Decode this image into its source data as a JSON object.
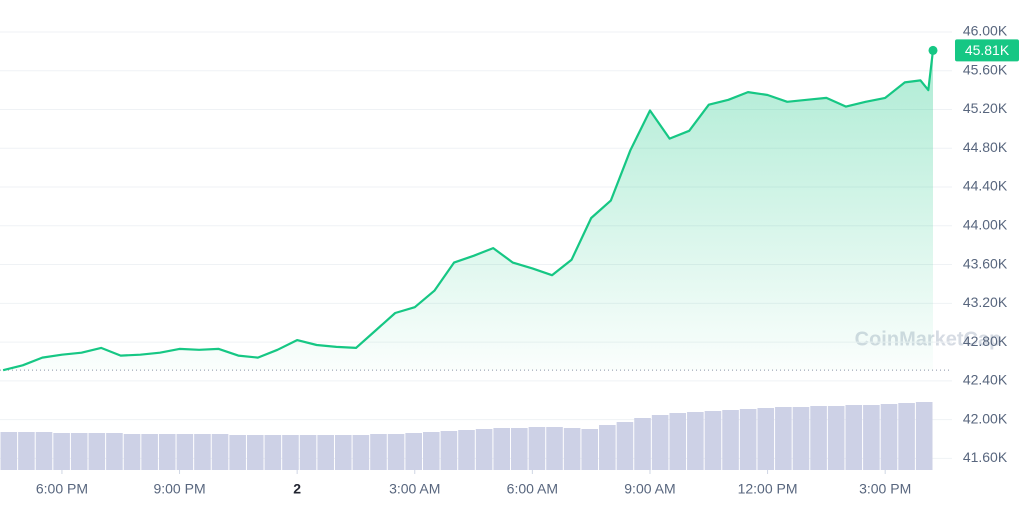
{
  "chart_data": {
    "type": "line",
    "watermark": "CoinMarketCap",
    "color": "#16c784",
    "x": [
      16.5,
      17,
      17.5,
      18,
      18.5,
      19,
      19.5,
      20,
      20.5,
      21,
      21.5,
      22,
      22.5,
      23,
      23.5,
      24,
      24.5,
      25,
      25.5,
      26,
      26.5,
      27,
      27.5,
      28,
      28.5,
      29,
      29.5,
      30,
      30.5,
      31,
      31.5,
      32,
      32.5,
      33,
      33.5,
      34,
      34.5,
      35,
      35.5,
      36,
      36.5,
      37,
      37.5,
      38,
      38.5,
      39,
      39.5,
      39.9,
      40.1,
      40.22
    ],
    "values": [
      42.51,
      42.56,
      42.64,
      42.67,
      42.69,
      42.74,
      42.66,
      42.67,
      42.69,
      42.73,
      42.72,
      42.73,
      42.66,
      42.64,
      42.72,
      42.82,
      42.77,
      42.75,
      42.74,
      42.92,
      43.1,
      43.16,
      43.33,
      43.62,
      43.69,
      43.77,
      43.62,
      43.56,
      43.49,
      43.65,
      44.08,
      44.26,
      44.78,
      45.19,
      44.9,
      44.98,
      45.25,
      45.3,
      45.38,
      45.35,
      45.28,
      45.3,
      45.32,
      45.23,
      45.28,
      45.32,
      45.48,
      45.5,
      45.4,
      45.81
    ],
    "value_labels": [
      null,
      null,
      null,
      null,
      null,
      null,
      null,
      null,
      null,
      null,
      null,
      null,
      null,
      null,
      null,
      null,
      null,
      null,
      null,
      null,
      null,
      null,
      null,
      null,
      null,
      null,
      null,
      null,
      null,
      null,
      null,
      null,
      null,
      null,
      null,
      null,
      null,
      null,
      null,
      null,
      null,
      null,
      null,
      null,
      null,
      null,
      null,
      null,
      null,
      "45.81K"
    ],
    "reference_line": 42.51,
    "xlim": [
      16.42,
      40.22
    ],
    "xticks": [
      {
        "value": 18,
        "label": "6:00 PM"
      },
      {
        "value": 21,
        "label": "9:00 PM"
      },
      {
        "value": 24,
        "label": "2"
      },
      {
        "value": 27,
        "label": "3:00 AM"
      },
      {
        "value": 30,
        "label": "6:00 AM"
      },
      {
        "value": 33,
        "label": "9:00 AM"
      },
      {
        "value": 36,
        "label": "12:00 PM"
      },
      {
        "value": 39,
        "label": "3:00 PM"
      }
    ],
    "ylim": [
      41.48,
      46.33
    ],
    "yticks": [
      {
        "value": 41.6,
        "label": "41.60K"
      },
      {
        "value": 42,
        "label": "42.00K"
      },
      {
        "value": 42.4,
        "label": "42.40K"
      },
      {
        "value": 42.8,
        "label": "42.80K"
      },
      {
        "value": 43.2,
        "label": "43.20K"
      },
      {
        "value": 43.6,
        "label": "43.60K"
      },
      {
        "value": 44,
        "label": "44.00K"
      },
      {
        "value": 44.4,
        "label": "44.40K"
      },
      {
        "value": 44.8,
        "label": "44.80K"
      },
      {
        "value": 45.2,
        "label": "45.20K"
      },
      {
        "value": 45.6,
        "label": "45.60K"
      },
      {
        "value": 46,
        "label": "46.00K"
      }
    ],
    "grid": true,
    "volume": {
      "color": "#cdd1e6",
      "ylim": [
        0,
        100
      ],
      "values": [
        38,
        38,
        38,
        37,
        37,
        37,
        37,
        36,
        36,
        36,
        36,
        36,
        36,
        35,
        35,
        35,
        35,
        35,
        35,
        35,
        35,
        36,
        36,
        37,
        38,
        39,
        40,
        41,
        42,
        42,
        43,
        43,
        42,
        41,
        45,
        48,
        52,
        55,
        57,
        58,
        59,
        60,
        61,
        62,
        63,
        63,
        64,
        64,
        65,
        65,
        66,
        67,
        68
      ]
    }
  }
}
